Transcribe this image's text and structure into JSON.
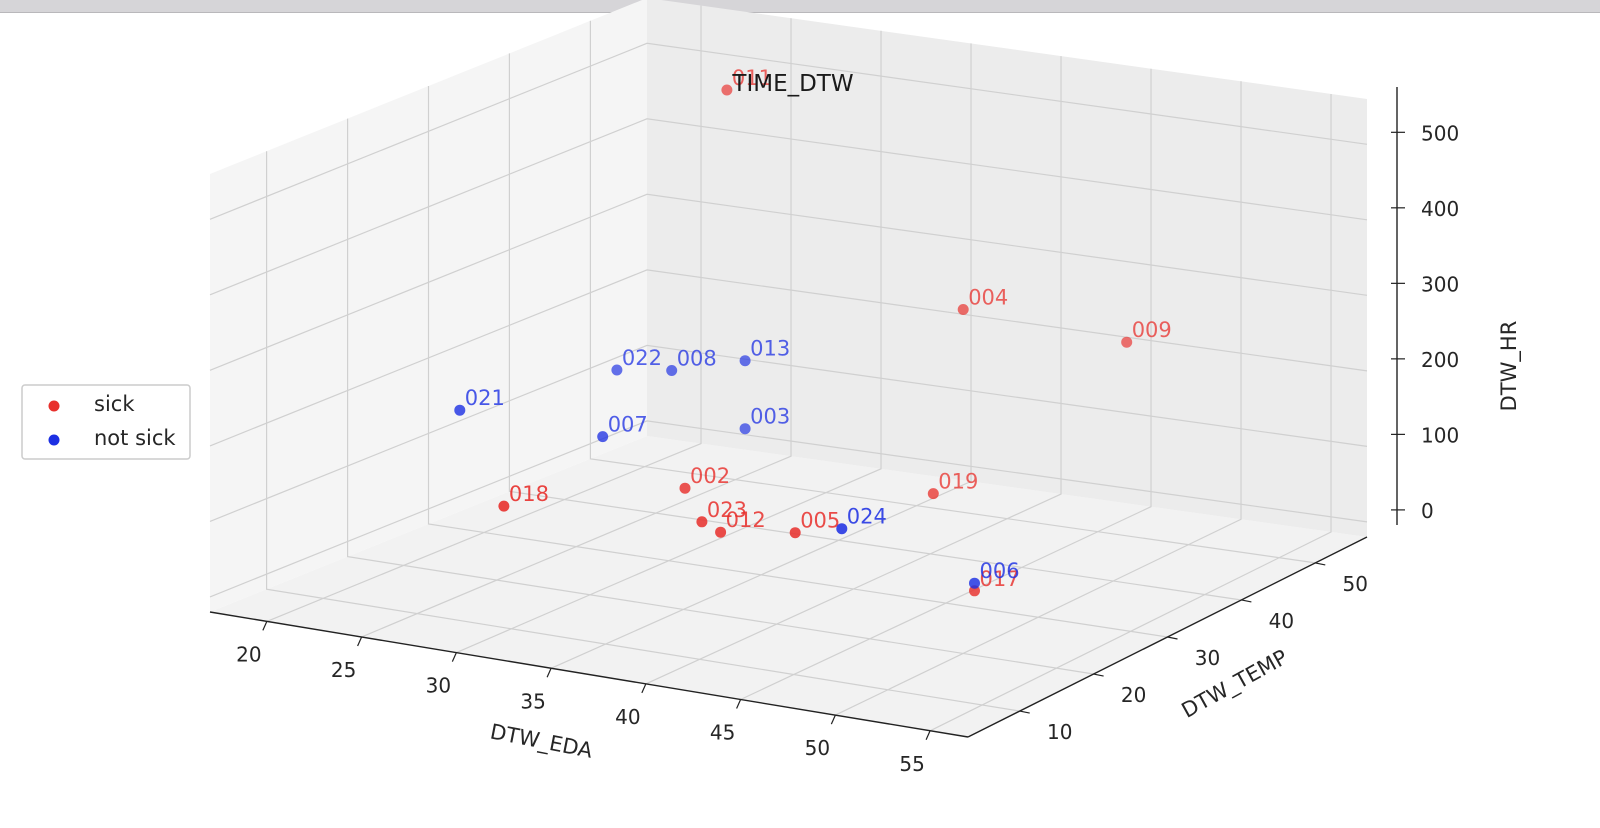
{
  "chart_data": {
    "type": "scatter",
    "projection": "3d",
    "title": "TIME_DTW",
    "xlabel": "DTW_EDA",
    "ylabel": "DTW_TEMP",
    "zlabel": "DTW_HR",
    "xticks": [
      "20",
      "25",
      "30",
      "35",
      "40",
      "45",
      "50",
      "55"
    ],
    "yticks": [
      "10",
      "20",
      "30",
      "40",
      "50"
    ],
    "zticks": [
      "0",
      "100",
      "200",
      "300",
      "400",
      "500"
    ],
    "xlim": [
      17,
      57
    ],
    "ylim": [
      3,
      57
    ],
    "zlim": [
      -20,
      560
    ],
    "grid": true,
    "legend_position": "left",
    "series": [
      {
        "name": "sick",
        "color": "#e8302c",
        "points": [
          {
            "label": "011",
            "x": 27.5,
            "y": 43.2,
            "z": 535
          },
          {
            "label": "004",
            "x": 41.8,
            "y": 40.0,
            "z": 310
          },
          {
            "label": "009",
            "x": 49.5,
            "y": 43.0,
            "z": 280
          },
          {
            "label": "002",
            "x": 33.0,
            "y": 25.0,
            "z": 110
          },
          {
            "label": "018",
            "x": 27.5,
            "y": 15.0,
            "z": 110
          },
          {
            "label": "019",
            "x": 43.5,
            "y": 32.0,
            "z": 110
          },
          {
            "label": "023",
            "x": 36.0,
            "y": 20.0,
            "z": 100
          },
          {
            "label": "012",
            "x": 37.0,
            "y": 20.0,
            "z": 90
          },
          {
            "label": "005",
            "x": 41.0,
            "y": 20.0,
            "z": 105
          },
          {
            "label": "017",
            "x": 49.0,
            "y": 24.0,
            "z": 40
          }
        ]
      },
      {
        "name": "not sick",
        "color": "#1c2fe3",
        "points": [
          {
            "label": "013",
            "x": 28.5,
            "y": 43.2,
            "z": 180
          },
          {
            "label": "003",
            "x": 28.5,
            "y": 43.2,
            "z": 90
          },
          {
            "label": "022",
            "x": 22.0,
            "y": 42.0,
            "z": 150
          },
          {
            "label": "008",
            "x": 25.0,
            "y": 42.0,
            "z": 160
          },
          {
            "label": "021",
            "x": 20.0,
            "y": 27.0,
            "z": 155
          },
          {
            "label": "007",
            "x": 26.0,
            "y": 31.0,
            "z": 125
          },
          {
            "label": "024",
            "x": 43.5,
            "y": 20.0,
            "z": 120
          },
          {
            "label": "006",
            "x": 49.0,
            "y": 24.0,
            "z": 50
          }
        ]
      }
    ]
  }
}
